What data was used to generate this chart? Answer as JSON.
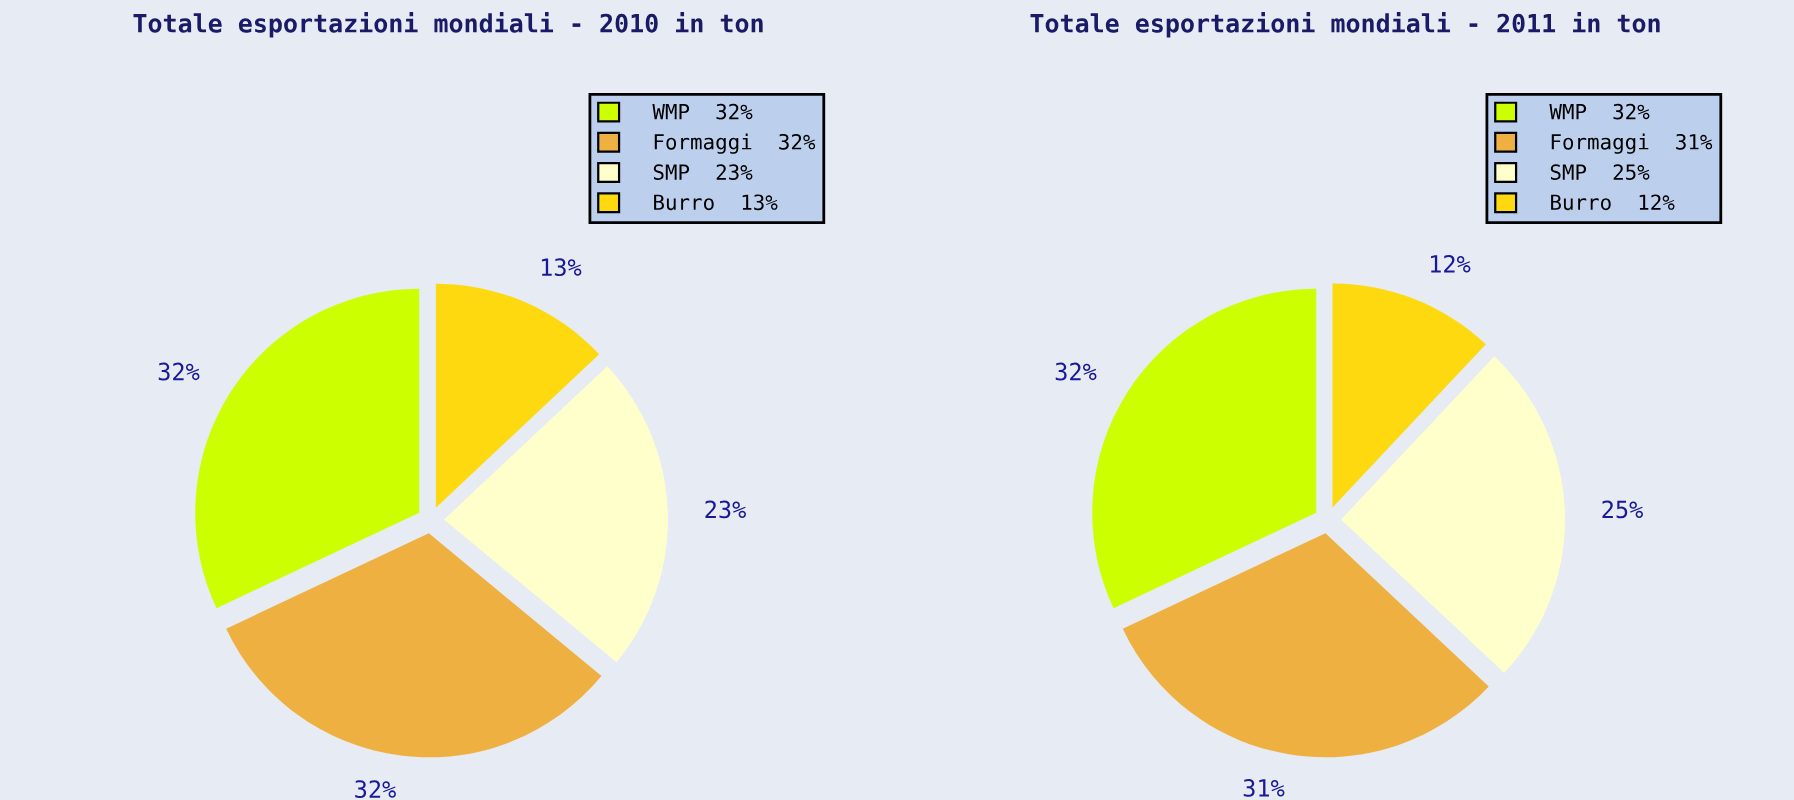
{
  "chart_data": [
    {
      "type": "pie",
      "title": "Totale esportazioni mondiali - 2010 in ton",
      "categories": [
        "WMP",
        "Formaggi",
        "SMP",
        "Burro"
      ],
      "values": [
        32,
        32,
        23,
        13
      ],
      "value_labels": [
        "32%",
        "32%",
        "23%",
        "13%"
      ],
      "colors": [
        "#ccff00",
        "#eeb040",
        "#ffffcc",
        "#ffd910"
      ],
      "legend": "top right"
    },
    {
      "type": "pie",
      "title": "Totale esportazioni mondiali - 2011 in ton",
      "categories": [
        "WMP",
        "Formaggi",
        "SMP",
        "Burro"
      ],
      "values": [
        32,
        31,
        25,
        12
      ],
      "value_labels": [
        "32%",
        "31%",
        "25%",
        "12%"
      ],
      "colors": [
        "#ccff00",
        "#eeb040",
        "#ffffcc",
        "#ffd910"
      ],
      "legend": "top right"
    }
  ]
}
